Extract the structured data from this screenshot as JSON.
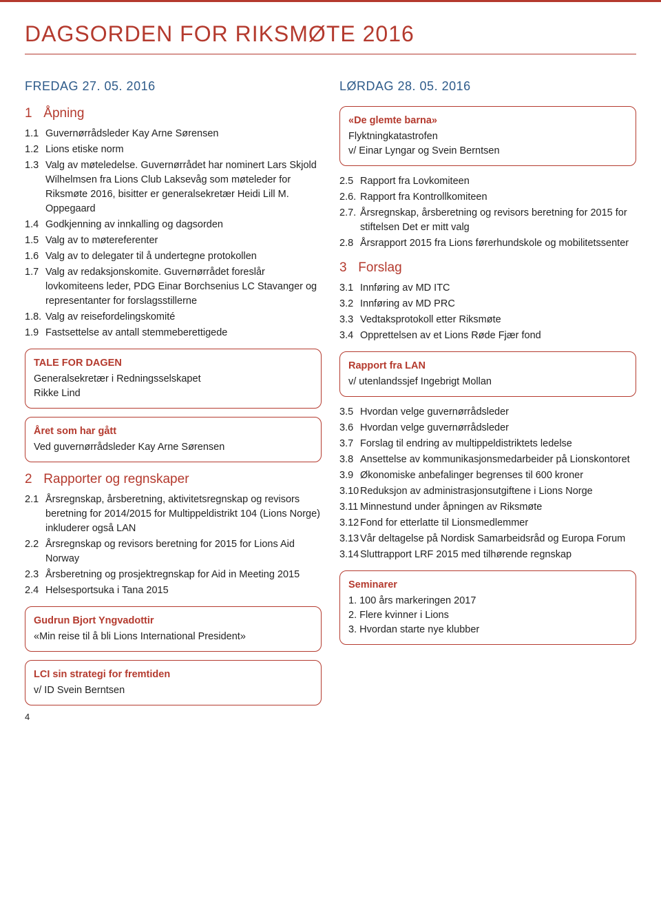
{
  "page": {
    "title": "DAGSORDEN FOR RIKSMØTE 2016",
    "page_number": "4"
  },
  "colors": {
    "accent_red": "#b43a2e",
    "accent_blue": "#2e5b8a",
    "text": "#222222",
    "background": "#ffffff"
  },
  "left": {
    "day": "FREDAG 27. 05. 2016",
    "s1": {
      "num": "1",
      "title": "Åpning"
    },
    "s1_items": [
      {
        "n": "1.1",
        "t": "Guvernørrådsleder Kay Arne Sørensen"
      },
      {
        "n": "1.2",
        "t": "Lions etiske norm"
      },
      {
        "n": "1.3",
        "t": "Valg av møteledelse. Guvernørrådet har nominert Lars Skjold Wilhelmsen fra Lions Club Laksevåg som møteleder for Riksmøte 2016, bisitter er generalsekretær Heidi Lill M. Oppegaard"
      },
      {
        "n": "1.4",
        "t": "Godkjenning av innkalling og dagsorden"
      },
      {
        "n": "1.5",
        "t": "Valg av to møtereferenter"
      },
      {
        "n": "1.6",
        "t": "Valg av to delegater til å undertegne protokollen"
      },
      {
        "n": "1.7",
        "t": "Valg av redaksjonskomite. Guvernørrådet foreslår lovkomiteens leder, PDG Einar Borchsenius LC Stavanger og representanter for forslagsstillerne"
      },
      {
        "n": "1.8.",
        "t": "Valg av reisefordelingskomité"
      },
      {
        "n": "1.9",
        "t": "Fastsettelse av antall stemmeberettigede"
      }
    ],
    "box_tale": {
      "title": "TALE FOR DAGEN",
      "line1": "Generalsekretær i Redningsselskapet",
      "line2": "Rikke Lind"
    },
    "box_aret": {
      "title": "Året som har gått",
      "line1": "Ved guvernørrådsleder Kay Arne Sørensen"
    },
    "s2": {
      "num": "2",
      "title": "Rapporter og regnskaper"
    },
    "s2_items": [
      {
        "n": "2.1",
        "t": "Årsregnskap, årsberetning, aktivitetsregnskap og revisors beretning for 2014/2015 for Multippeldistrikt 104 (Lions Norge) inkluderer også LAN"
      },
      {
        "n": "2.2",
        "t": "Årsregnskap og revisors beretning for 2015 for Lions Aid Norway"
      },
      {
        "n": "2.3",
        "t": "Årsberetning og prosjektregnskap for Aid in Meeting 2015"
      },
      {
        "n": "2.4",
        "t": "Helsesportsuka i Tana 2015"
      }
    ],
    "box_gudrun": {
      "title": "Gudrun Bjort Yngvadottir",
      "line1": "«Min reise til å bli Lions International President»"
    },
    "box_lci": {
      "title": "LCI sin strategi for fremtiden",
      "line1": "v/ ID Svein Berntsen"
    }
  },
  "right": {
    "day": "LØRDAG 28. 05. 2016",
    "box_glemte": {
      "title": "«De glemte barna»",
      "line1": "Flyktningkatastrofen",
      "line2": "v/ Einar Lyngar og Svein Berntsen"
    },
    "pre_items": [
      {
        "n": "2.5",
        "t": "Rapport fra Lovkomiteen"
      },
      {
        "n": "2.6.",
        "t": "Rapport fra Kontrollkomiteen"
      },
      {
        "n": "2.7.",
        "t": "Årsregnskap, årsberetning og revisors beretning for 2015 for stiftelsen Det er mitt valg"
      },
      {
        "n": "2.8",
        "t": "Årsrapport 2015 fra Lions førerhundskole og mobilitetssenter"
      }
    ],
    "s3": {
      "num": "3",
      "title": "Forslag"
    },
    "s3_items_a": [
      {
        "n": "3.1",
        "t": "Innføring av MD ITC"
      },
      {
        "n": "3.2",
        "t": "Innføring av MD PRC"
      },
      {
        "n": "3.3",
        "t": "Vedtaksprotokoll etter Riksmøte"
      },
      {
        "n": "3.4",
        "t": "Opprettelsen av et Lions Røde Fjær fond"
      }
    ],
    "box_lan": {
      "title": "Rapport fra LAN",
      "line1": "v/ utenlandssjef Ingebrigt Mollan"
    },
    "s3_items_b": [
      {
        "n": "3.5",
        "t": "Hvordan velge guvernørrådsleder"
      },
      {
        "n": "3.6",
        "t": "Hvordan velge guvernørrådsleder"
      },
      {
        "n": "3.7",
        "t": "Forslag til endring av multippeldistriktets ledelse"
      },
      {
        "n": "3.8",
        "t": "Ansettelse av kommunikasjonsmedarbeider på Lionskontoret"
      },
      {
        "n": "3.9",
        "t": "Økonomiske anbefalinger begrenses til 600 kroner"
      },
      {
        "n": "3.10",
        "t": "Reduksjon av administrasjonsutgiftene i Lions Norge"
      },
      {
        "n": "3.11",
        "t": "Minnestund under åpningen av Riksmøte"
      },
      {
        "n": "3.12",
        "t": "Fond for etterlatte til Lionsmedlemmer"
      },
      {
        "n": "3.13",
        "t": "Vår deltagelse på Nordisk Samarbeidsråd og Europa Forum"
      },
      {
        "n": "3.14",
        "t": "Sluttrapport LRF 2015 med tilhørende regnskap"
      }
    ],
    "box_sem": {
      "title": "Seminarer",
      "line1": "1.  100 års markeringen 2017",
      "line2": "2.  Flere kvinner i Lions",
      "line3": "3.  Hvordan starte nye klubber"
    }
  }
}
